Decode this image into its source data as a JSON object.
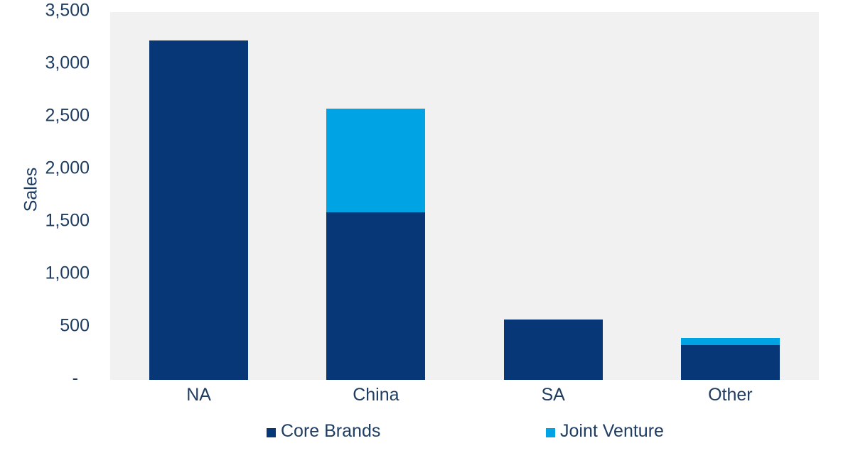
{
  "chart_data": {
    "type": "bar",
    "stacked": true,
    "title": "",
    "categories": [
      "NA",
      "China",
      "SA",
      "Other"
    ],
    "series": [
      {
        "name": "Core Brands",
        "color": "#083778",
        "values": [
          3232,
          1595,
          572,
          333
        ]
      },
      {
        "name": "Joint Venture",
        "color": "#00A3E3",
        "values": [
          0,
          987,
          0,
          68
        ]
      }
    ],
    "xlabel": "",
    "ylabel": "Sales",
    "ylim": [
      0,
      3500
    ],
    "ytick_step": 500,
    "ytick_labels": [
      "-",
      "500",
      "1,000",
      "1,500",
      "2,000",
      "2,500",
      "3,000",
      "3,500"
    ],
    "zero_tick_label": "-",
    "grid": false,
    "legend_position": "bottom",
    "legend_entries": [
      "Core Brands",
      "Joint Venture"
    ],
    "colors": {
      "core_brands": "#083778",
      "joint_venture": "#00A3E3",
      "plot_background": "#F1F1F1",
      "canvas_background": "#FFFFFF",
      "text": "#1F3C61"
    }
  }
}
